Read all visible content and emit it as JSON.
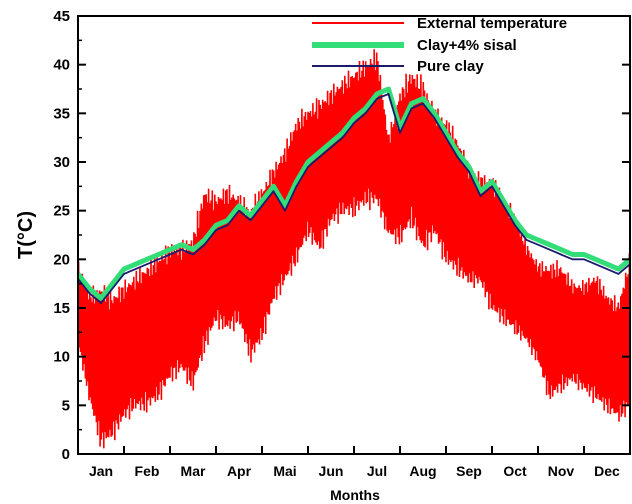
{
  "chart_data": {
    "type": "line",
    "title": "",
    "xlabel": "Months",
    "ylabel": "T(°C)",
    "ylim": [
      0,
      45
    ],
    "yticks": [
      0,
      5,
      10,
      15,
      20,
      25,
      30,
      35,
      40,
      45
    ],
    "xlim": [
      0,
      12
    ],
    "categories": [
      "Jan",
      "Feb",
      "Mar",
      "Apr",
      "Mai",
      "Jun",
      "Jul",
      "Aug",
      "Sep",
      "Oct",
      "Nov",
      "Dec"
    ],
    "legend_position": "top-right",
    "grid": false,
    "series": [
      {
        "name": "External temperature",
        "color": "#ff0000",
        "style": "band",
        "x": [
          0.0,
          0.25,
          0.5,
          0.75,
          1.0,
          1.25,
          1.5,
          1.75,
          2.0,
          2.25,
          2.5,
          2.75,
          3.0,
          3.25,
          3.5,
          3.75,
          4.0,
          4.25,
          4.5,
          4.75,
          5.0,
          5.25,
          5.5,
          5.75,
          6.0,
          6.25,
          6.5,
          6.75,
          7.0,
          7.25,
          7.5,
          7.75,
          8.0,
          8.25,
          8.5,
          8.75,
          9.0,
          9.25,
          9.5,
          9.75,
          10.0,
          10.25,
          10.5,
          10.75,
          11.0,
          11.25,
          11.5,
          11.75,
          12.0
        ],
        "min": [
          11,
          5,
          0,
          1,
          3,
          4,
          4,
          5,
          7,
          8,
          6,
          10,
          13,
          12,
          13,
          9,
          11,
          15,
          17,
          19,
          22,
          20,
          23,
          24,
          24,
          25,
          25,
          22,
          21,
          23,
          20,
          22,
          19,
          18,
          17,
          17,
          14,
          13,
          12,
          11,
          9,
          5,
          6,
          7,
          6,
          5,
          4,
          3,
          4
        ],
        "max": [
          20,
          17,
          18,
          17,
          18,
          19,
          20,
          21,
          22,
          22,
          23,
          28,
          27,
          28,
          27,
          26,
          28,
          30,
          32,
          35,
          36,
          37,
          38,
          39,
          40,
          41,
          42,
          33,
          38,
          40,
          39,
          36,
          35,
          33,
          30,
          29,
          29,
          27,
          25,
          22,
          20,
          20,
          20,
          18,
          18,
          19,
          17,
          16,
          21
        ]
      },
      {
        "name": "Clay+4% sisal",
        "color": "#33dd77",
        "x": [
          0.0,
          0.25,
          0.5,
          0.75,
          1.0,
          1.25,
          1.5,
          1.75,
          2.0,
          2.25,
          2.5,
          2.75,
          3.0,
          3.25,
          3.5,
          3.75,
          4.0,
          4.25,
          4.5,
          4.75,
          5.0,
          5.25,
          5.5,
          5.75,
          6.0,
          6.25,
          6.5,
          6.75,
          7.0,
          7.25,
          7.5,
          7.75,
          8.0,
          8.25,
          8.5,
          8.75,
          9.0,
          9.25,
          9.5,
          9.75,
          10.0,
          10.25,
          10.5,
          10.75,
          11.0,
          11.25,
          11.5,
          11.75,
          12.0
        ],
        "values": [
          18.5,
          17.0,
          16.0,
          17.5,
          19.0,
          19.5,
          20.0,
          20.5,
          21.0,
          21.5,
          21.0,
          22.0,
          23.5,
          24.0,
          25.5,
          24.5,
          26.0,
          27.5,
          25.5,
          28.0,
          30.0,
          31.0,
          32.0,
          33.0,
          34.5,
          35.5,
          37.0,
          37.5,
          33.5,
          36.0,
          36.5,
          35.0,
          33.0,
          31.0,
          29.5,
          27.0,
          28.0,
          26.0,
          24.0,
          22.5,
          22.0,
          21.5,
          21.0,
          20.5,
          20.5,
          20.0,
          19.5,
          19.0,
          20.0
        ]
      },
      {
        "name": "Pure clay",
        "color": "#1a1a6e",
        "x": [
          0.0,
          0.25,
          0.5,
          0.75,
          1.0,
          1.25,
          1.5,
          1.75,
          2.0,
          2.25,
          2.5,
          2.75,
          3.0,
          3.25,
          3.5,
          3.75,
          4.0,
          4.25,
          4.5,
          4.75,
          5.0,
          5.25,
          5.5,
          5.75,
          6.0,
          6.25,
          6.5,
          6.75,
          7.0,
          7.25,
          7.5,
          7.75,
          8.0,
          8.25,
          8.5,
          8.75,
          9.0,
          9.25,
          9.5,
          9.75,
          10.0,
          10.25,
          10.5,
          10.75,
          11.0,
          11.25,
          11.5,
          11.75,
          12.0
        ],
        "values": [
          18.0,
          16.5,
          15.5,
          17.0,
          18.5,
          19.0,
          19.5,
          20.0,
          20.5,
          21.0,
          20.5,
          21.5,
          23.0,
          23.5,
          25.0,
          24.0,
          25.5,
          27.0,
          25.0,
          27.5,
          29.5,
          30.5,
          31.5,
          32.5,
          34.0,
          35.0,
          36.5,
          37.0,
          33.0,
          35.5,
          36.0,
          34.5,
          32.5,
          30.5,
          29.0,
          26.5,
          27.5,
          25.5,
          23.5,
          22.0,
          21.5,
          21.0,
          20.5,
          20.0,
          20.0,
          19.5,
          19.0,
          18.5,
          19.5
        ]
      }
    ]
  }
}
